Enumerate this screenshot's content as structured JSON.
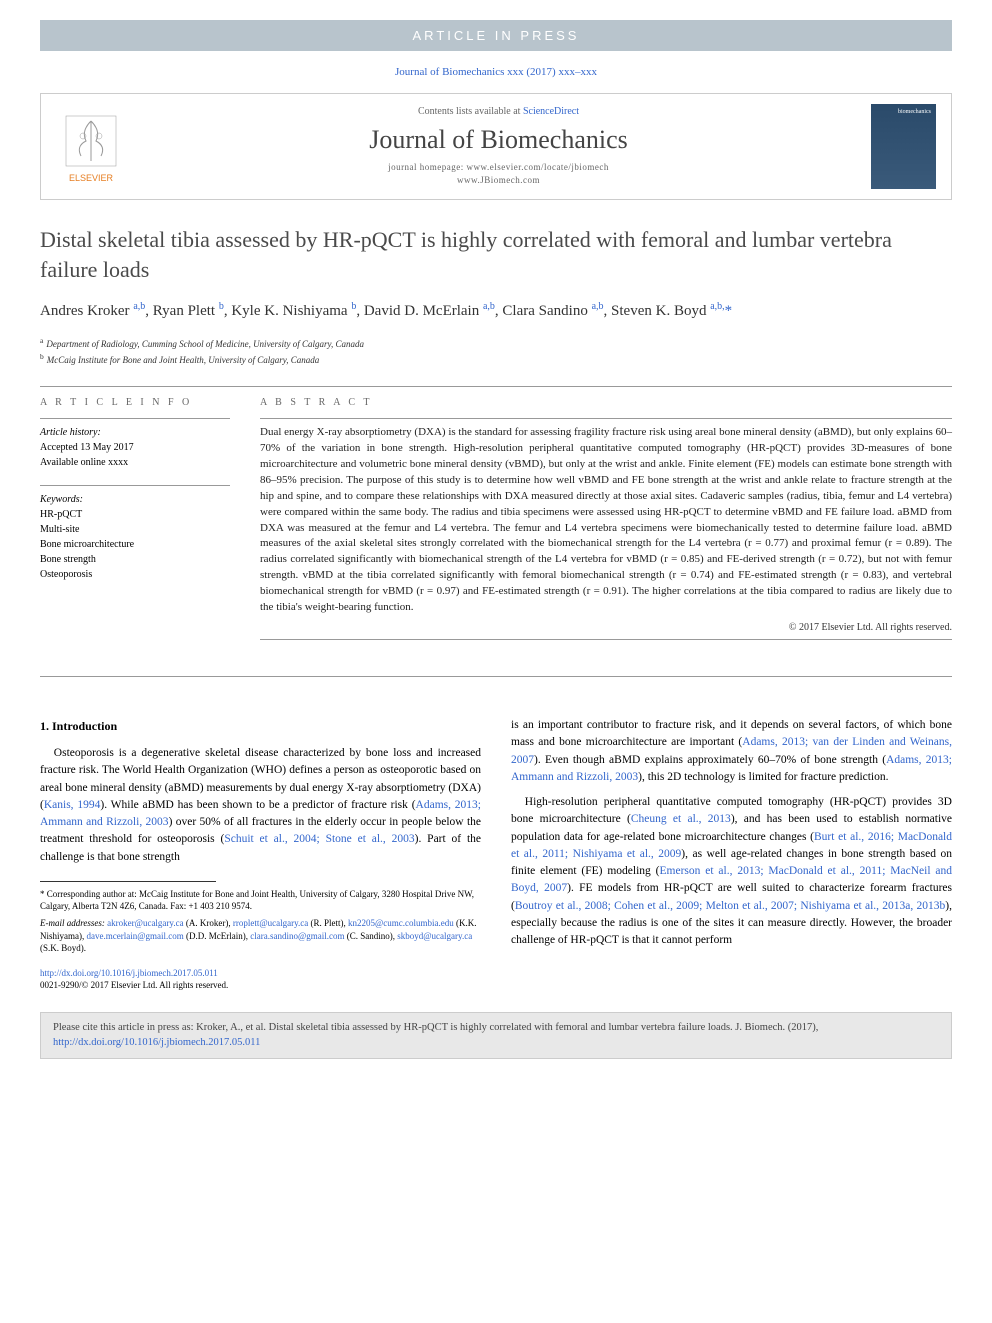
{
  "banner": "ARTICLE IN PRESS",
  "citation_top": "Journal of Biomechanics xxx (2017) xxx–xxx",
  "journal": {
    "contents_prefix": "Contents lists available at ",
    "contents_link": "ScienceDirect",
    "name": "Journal of Biomechanics",
    "homepage_label": "journal homepage: ",
    "homepage1": "www.elsevier.com/locate/jbiomech",
    "homepage2": "www.JBiomech.com",
    "publisher": "ELSEVIER",
    "cover_text": "biomechanics"
  },
  "title": "Distal skeletal tibia assessed by HR-pQCT is highly correlated with femoral and lumbar vertebra failure loads",
  "authors_html": "Andres Kroker <sup>a,b</sup>, Ryan Plett <sup>b</sup>, Kyle K. Nishiyama <sup>b</sup>, David D. McErlain <sup>a,b</sup>, Clara Sandino <sup>a,b</sup>, Steven K. Boyd <sup>a,b,</sup><span class='corr'>*</span>",
  "affiliations": [
    {
      "sup": "a",
      "text": "Department of Radiology, Cumming School of Medicine, University of Calgary, Canada"
    },
    {
      "sup": "b",
      "text": "McCaig Institute for Bone and Joint Health, University of Calgary, Canada"
    }
  ],
  "info": {
    "head": "A R T I C L E   I N F O",
    "history_label": "Article history:",
    "accepted": "Accepted 13 May 2017",
    "online": "Available online xxxx",
    "keywords_label": "Keywords:",
    "keywords": [
      "HR-pQCT",
      "Multi-site",
      "Bone microarchitecture",
      "Bone strength",
      "Osteoporosis"
    ]
  },
  "abstract": {
    "head": "A B S T R A C T",
    "text": "Dual energy X-ray absorptiometry (DXA) is the standard for assessing fragility fracture risk using areal bone mineral density (aBMD), but only explains 60–70% of the variation in bone strength. High-resolution peripheral quantitative computed tomography (HR-pQCT) provides 3D-measures of bone microarchitecture and volumetric bone mineral density (vBMD), but only at the wrist and ankle. Finite element (FE) models can estimate bone strength with 86–95% precision. The purpose of this study is to determine how well vBMD and FE bone strength at the wrist and ankle relate to fracture strength at the hip and spine, and to compare these relationships with DXA measured directly at those axial sites. Cadaveric samples (radius, tibia, femur and L4 vertebra) were compared within the same body. The radius and tibia specimens were assessed using HR-pQCT to determine vBMD and FE failure load. aBMD from DXA was measured at the femur and L4 vertebra. The femur and L4 vertebra specimens were biomechanically tested to determine failure load. aBMD measures of the axial skeletal sites strongly correlated with the biomechanical strength for the L4 vertebra (r = 0.77) and proximal femur (r = 0.89). The radius correlated significantly with biomechanical strength of the L4 vertebra for vBMD (r = 0.85) and FE-derived strength (r = 0.72), but not with femur strength. vBMD at the tibia correlated significantly with femoral biomechanical strength (r = 0.74) and FE-estimated strength (r = 0.83), and vertebral biomechanical strength for vBMD (r = 0.97) and FE-estimated strength (r = 0.91). The higher correlations at the tibia compared to radius are likely due to the tibia's weight-bearing function.",
    "copyright": "© 2017 Elsevier Ltd. All rights reserved."
  },
  "introduction": {
    "head": "1. Introduction",
    "p1_pre": "Osteoporosis is a degenerative skeletal disease characterized by bone loss and increased fracture risk. The World Health Organization (WHO) defines a person as osteoporotic based on areal bone mineral density (aBMD) measurements by dual energy X-ray absorptiometry (DXA) (",
    "p1_ref1": "Kanis, 1994",
    "p1_mid1": "). While aBMD has been shown to be a predictor of fracture risk (",
    "p1_ref2": "Adams, 2013; Ammann and Rizzoli, 2003",
    "p1_mid2": ") over 50% of all fractures in the elderly occur in people below the treatment threshold for osteoporosis (",
    "p1_ref3": "Schuit et al., 2004; Stone et al., 2003",
    "p1_post": "). Part of the challenge is that bone strength",
    "p2_pre": "is an important contributor to fracture risk, and it depends on several factors, of which bone mass and bone microarchitecture are important (",
    "p2_ref1": "Adams, 2013; van der Linden and Weinans, 2007",
    "p2_mid1": "). Even though aBMD explains approximately 60–70% of bone strength (",
    "p2_ref2": "Adams, 2013; Ammann and Rizzoli, 2003",
    "p2_post": "), this 2D technology is limited for fracture prediction.",
    "p3_pre": "High-resolution peripheral quantitative computed tomography (HR-pQCT) provides 3D bone microarchitecture (",
    "p3_ref1": "Cheung et al., 2013",
    "p3_mid1": "), and has been used to establish normative population data for age-related bone microarchitecture changes (",
    "p3_ref2": "Burt et al., 2016; MacDonald et al., 2011; Nishiyama et al., 2009",
    "p3_mid2": "), as well age-related changes in bone strength based on finite element (FE) modeling (",
    "p3_ref3": "Emerson et al., 2013; MacDonald et al., 2011; MacNeil and Boyd, 2007",
    "p3_mid3": "). FE models from HR-pQCT are well suited to characterize forearm fractures (",
    "p3_ref4": "Boutroy et al., 2008; Cohen et al., 2009; Melton et al., 2007; Nishiyama et al., 2013a, 2013b",
    "p3_post": "), especially because the radius is one of the sites it can measure directly. However, the broader challenge of HR-pQCT is that it cannot perform"
  },
  "footnotes": {
    "corr_label": "* Corresponding author at: McCaig Institute for Bone and Joint Health, University of Calgary, 3280 Hospital Drive NW, Calgary, Alberta T2N 4Z6, Canada. Fax: +1 403 210 9574.",
    "email_label": "E-mail addresses: ",
    "emails": [
      {
        "addr": "akroker@ucalgary.ca",
        "who": " (A. Kroker), "
      },
      {
        "addr": "rroplett@ucalgary.ca",
        "who": " (R. Plett), "
      },
      {
        "addr": "kn2205@cumc.columbia.edu",
        "who": " (K.K. Nishiyama), "
      },
      {
        "addr": "dave.mcerlain@gmail.com",
        "who": " (D.D. McErlain), "
      },
      {
        "addr": "clara.sandino@gmail.com",
        "who": " (C. Sandino), "
      },
      {
        "addr": "skboyd@ucalgary.ca",
        "who": " (S.K. Boyd)."
      }
    ]
  },
  "doi": {
    "url": "http://dx.doi.org/10.1016/j.jbiomech.2017.05.011",
    "issn": "0021-9290/© 2017 Elsevier Ltd. All rights reserved."
  },
  "citebox": {
    "text_pre": "Please cite this article in press as: Kroker, A., et al. Distal skeletal tibia assessed by HR-pQCT is highly correlated with femoral and lumbar vertebra failure loads. J. Biomech. (2017), ",
    "link": "http://dx.doi.org/10.1016/j.jbiomech.2017.05.011"
  }
}
